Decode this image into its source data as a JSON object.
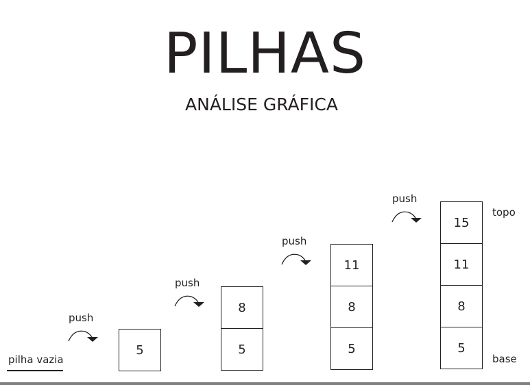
{
  "title": "PILHAS",
  "subtitle": "ANÁLISE GRÁFICA",
  "empty_label": "pilha vazia",
  "push_label": "push",
  "top_label": "topo",
  "base_label": "base",
  "stacks": [
    [
      "5"
    ],
    [
      "8",
      "5"
    ],
    [
      "11",
      "8",
      "5"
    ],
    [
      "15",
      "11",
      "8",
      "5"
    ]
  ]
}
